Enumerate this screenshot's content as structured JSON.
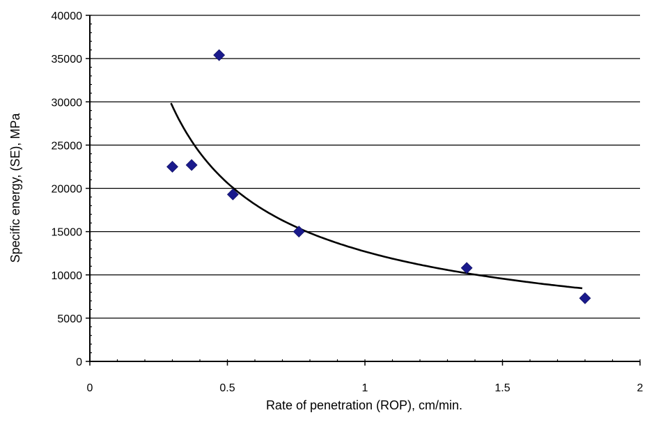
{
  "chart_data": {
    "type": "scatter",
    "title": "",
    "xlabel": "Rate of penetration (ROP), cm/min.",
    "ylabel": "Specific energy, (SE), MPa",
    "xlim": [
      0,
      2
    ],
    "ylim": [
      0,
      40000
    ],
    "x_ticks": [
      {
        "value": 0,
        "label": "0"
      },
      {
        "value": 0.5,
        "label": "0.5"
      },
      {
        "value": 1,
        "label": "1"
      },
      {
        "value": 1.5,
        "label": "1.5"
      },
      {
        "value": 2,
        "label": "2"
      }
    ],
    "y_ticks": [
      {
        "value": 0,
        "label": "0"
      },
      {
        "value": 5000,
        "label": "5000"
      },
      {
        "value": 10000,
        "label": "10000"
      },
      {
        "value": 15000,
        "label": "15000"
      },
      {
        "value": 20000,
        "label": "20000"
      },
      {
        "value": 25000,
        "label": "25000"
      },
      {
        "value": 30000,
        "label": "30000"
      },
      {
        "value": 35000,
        "label": "35000"
      },
      {
        "value": 40000,
        "label": "40000"
      }
    ],
    "grid": "horizontal",
    "legend": "none",
    "series": [
      {
        "kind": "scatter",
        "marker": "diamond",
        "color": "#1a1a8c",
        "points": [
          {
            "x": 0.3,
            "y": 22500
          },
          {
            "x": 0.37,
            "y": 22700
          },
          {
            "x": 0.47,
            "y": 35400
          },
          {
            "x": 0.52,
            "y": 19300
          },
          {
            "x": 0.76,
            "y": 15000
          },
          {
            "x": 1.37,
            "y": 10800
          },
          {
            "x": 1.8,
            "y": 7300
          }
        ]
      },
      {
        "kind": "trendline",
        "fit": "power",
        "color": "#000000",
        "coefficient": 12700,
        "exponent": -0.7,
        "x_range": [
          0.295,
          1.79
        ]
      }
    ]
  }
}
